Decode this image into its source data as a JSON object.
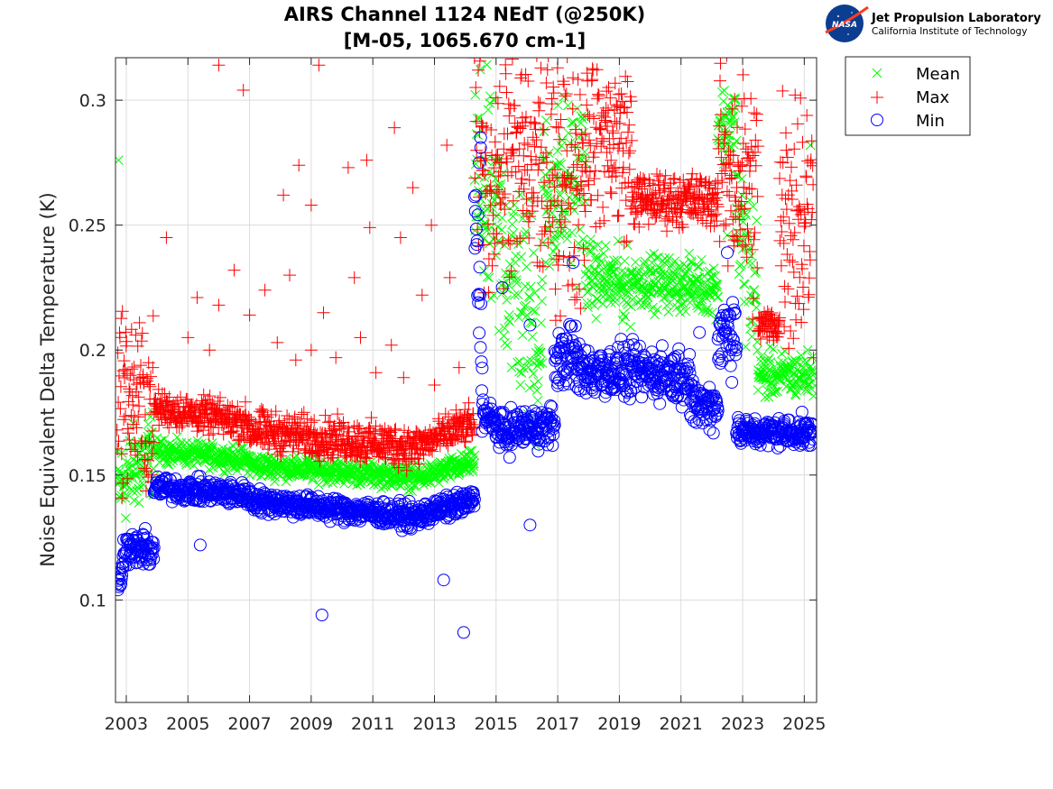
{
  "header": {
    "logo_text": "NASA",
    "lab_name": "Jet Propulsion Laboratory",
    "lab_sub": "California Institute of Technology"
  },
  "chart_data": {
    "type": "scatter",
    "title": "AIRS Channel 1124 NEdT (@250K)",
    "subtitle": "[M-05, 1065.670 cm-1]",
    "xlabel": "",
    "ylabel": "Noise Equivalent Delta Temperature (K)",
    "xlim": [
      2002.65,
      2025.4
    ],
    "ylim": [
      0.059,
      0.317
    ],
    "grid": true,
    "legend_position": "outside-top-right",
    "x_ticks": [
      2003,
      2005,
      2007,
      2009,
      2011,
      2013,
      2015,
      2017,
      2019,
      2021,
      2023,
      2025
    ],
    "x_tick_labels": [
      "2003",
      "2005",
      "2007",
      "2009",
      "2011",
      "2013",
      "2015",
      "2017",
      "2019",
      "2021",
      "2023",
      "2025"
    ],
    "y_ticks": [
      0.1,
      0.15,
      0.2,
      0.25,
      0.3
    ],
    "y_tick_labels": [
      "0.1",
      "0.15",
      "0.2",
      "0.25",
      "0.3"
    ],
    "series": [
      {
        "name": "Mean",
        "marker": "x",
        "color": "#00ff00",
        "segments": [
          {
            "x_start": 2002.7,
            "x_end": 2003.9,
            "center_start": 0.145,
            "center_end": 0.16,
            "spread": 0.015
          },
          {
            "x_start": 2003.9,
            "x_end": 2007.0,
            "center_start": 0.16,
            "center_end": 0.156,
            "spread": 0.004
          },
          {
            "x_start": 2007.0,
            "x_end": 2012.5,
            "center_start": 0.154,
            "center_end": 0.149,
            "spread": 0.004
          },
          {
            "x_start": 2012.5,
            "x_end": 2014.3,
            "center_start": 0.149,
            "center_end": 0.155,
            "spread": 0.004
          },
          {
            "x_start": 2014.3,
            "x_end": 2016.5,
            "center_start": 0.27,
            "center_end": 0.2,
            "spread": 0.04
          },
          {
            "x_start": 2016.5,
            "x_end": 2017.9,
            "center_start": 0.26,
            "center_end": 0.27,
            "spread": 0.03
          },
          {
            "x_start": 2017.9,
            "x_end": 2019.4,
            "center_start": 0.23,
            "center_end": 0.225,
            "spread": 0.012
          },
          {
            "x_start": 2019.4,
            "x_end": 2022.2,
            "center_start": 0.228,
            "center_end": 0.225,
            "spread": 0.009
          },
          {
            "x_start": 2022.2,
            "x_end": 2022.8,
            "center_start": 0.29,
            "center_end": 0.29,
            "spread": 0.014
          },
          {
            "x_start": 2022.8,
            "x_end": 2023.5,
            "center_start": 0.25,
            "center_end": 0.22,
            "spread": 0.03
          },
          {
            "x_start": 2023.5,
            "x_end": 2025.3,
            "center_start": 0.19,
            "center_end": 0.19,
            "spread": 0.008
          }
        ],
        "outliers": [
          [
            2002.75,
            0.276
          ],
          [
            2022.5,
            0.246
          ],
          [
            2025.2,
            0.282
          ]
        ]
      },
      {
        "name": "Max",
        "marker": "+",
        "color": "#ff0000",
        "segments": [
          {
            "x_start": 2002.7,
            "x_end": 2003.9,
            "center_start": 0.185,
            "center_end": 0.175,
            "spread": 0.03
          },
          {
            "x_start": 2003.9,
            "x_end": 2007.0,
            "center_start": 0.177,
            "center_end": 0.171,
            "spread": 0.006
          },
          {
            "x_start": 2007.0,
            "x_end": 2012.5,
            "center_start": 0.168,
            "center_end": 0.161,
            "spread": 0.007
          },
          {
            "x_start": 2012.5,
            "x_end": 2014.3,
            "center_start": 0.162,
            "center_end": 0.171,
            "spread": 0.006
          },
          {
            "x_start": 2014.3,
            "x_end": 2017.9,
            "center_start": 0.28,
            "center_end": 0.27,
            "spread": 0.045
          },
          {
            "x_start": 2017.9,
            "x_end": 2019.4,
            "center_start": 0.29,
            "center_end": 0.28,
            "spread": 0.03
          },
          {
            "x_start": 2019.4,
            "x_end": 2022.2,
            "center_start": 0.26,
            "center_end": 0.26,
            "spread": 0.009
          },
          {
            "x_start": 2022.2,
            "x_end": 2023.5,
            "center_start": 0.28,
            "center_end": 0.26,
            "spread": 0.04
          },
          {
            "x_start": 2023.5,
            "x_end": 2024.2,
            "center_start": 0.21,
            "center_end": 0.21,
            "spread": 0.006
          },
          {
            "x_start": 2024.2,
            "x_end": 2025.3,
            "center_start": 0.26,
            "center_end": 0.25,
            "spread": 0.05
          }
        ],
        "outliers": [
          [
            2006.0,
            0.314
          ],
          [
            2006.8,
            0.304
          ],
          [
            2009.25,
            0.314
          ],
          [
            2008.6,
            0.274
          ],
          [
            2008.1,
            0.262
          ],
          [
            2009.0,
            0.258
          ],
          [
            2010.2,
            0.273
          ],
          [
            2010.8,
            0.276
          ],
          [
            2011.7,
            0.289
          ],
          [
            2012.3,
            0.265
          ],
          [
            2012.9,
            0.25
          ],
          [
            2011.9,
            0.245
          ],
          [
            2010.9,
            0.249
          ],
          [
            2013.4,
            0.282
          ],
          [
            2004.3,
            0.245
          ],
          [
            2005.3,
            0.221
          ],
          [
            2006.5,
            0.232
          ],
          [
            2007.5,
            0.224
          ],
          [
            2008.3,
            0.23
          ],
          [
            2009.4,
            0.215
          ],
          [
            2010.4,
            0.229
          ],
          [
            2011.6,
            0.202
          ],
          [
            2012.6,
            0.222
          ],
          [
            2013.5,
            0.229
          ],
          [
            2007.0,
            0.214
          ],
          [
            2009.8,
            0.197
          ],
          [
            2005.7,
            0.2
          ],
          [
            2008.5,
            0.196
          ],
          [
            2011.1,
            0.191
          ],
          [
            2012.0,
            0.189
          ],
          [
            2013.0,
            0.186
          ],
          [
            2013.8,
            0.193
          ],
          [
            2013.7,
            0.176
          ],
          [
            2005.0,
            0.205
          ],
          [
            2006.0,
            0.218
          ],
          [
            2007.9,
            0.203
          ],
          [
            2009.0,
            0.2
          ],
          [
            2010.6,
            0.205
          ]
        ]
      },
      {
        "name": "Min",
        "marker": "o",
        "color": "#0000ff",
        "segments": [
          {
            "x_start": 2002.7,
            "x_end": 2002.9,
            "center_start": 0.108,
            "center_end": 0.112,
            "spread": 0.004
          },
          {
            "x_start": 2002.9,
            "x_end": 2003.9,
            "center_start": 0.12,
            "center_end": 0.12,
            "spread": 0.006
          },
          {
            "x_start": 2003.9,
            "x_end": 2007.0,
            "center_start": 0.145,
            "center_end": 0.142,
            "spread": 0.004
          },
          {
            "x_start": 2007.0,
            "x_end": 2012.5,
            "center_start": 0.14,
            "center_end": 0.133,
            "spread": 0.004
          },
          {
            "x_start": 2012.5,
            "x_end": 2014.3,
            "center_start": 0.134,
            "center_end": 0.14,
            "spread": 0.004
          },
          {
            "x_start": 2014.3,
            "x_end": 2014.55,
            "center_start": 0.26,
            "center_end": 0.2,
            "spread": 0.02
          },
          {
            "x_start": 2014.55,
            "x_end": 2015.4,
            "center_start": 0.175,
            "center_end": 0.165,
            "spread": 0.006
          },
          {
            "x_start": 2015.4,
            "x_end": 2016.9,
            "center_start": 0.168,
            "center_end": 0.17,
            "spread": 0.007
          },
          {
            "x_start": 2016.9,
            "x_end": 2017.6,
            "center_start": 0.195,
            "center_end": 0.2,
            "spread": 0.01
          },
          {
            "x_start": 2017.6,
            "x_end": 2021.3,
            "center_start": 0.192,
            "center_end": 0.19,
            "spread": 0.009
          },
          {
            "x_start": 2021.3,
            "x_end": 2022.2,
            "center_start": 0.178,
            "center_end": 0.178,
            "spread": 0.008
          },
          {
            "x_start": 2022.2,
            "x_end": 2022.8,
            "center_start": 0.205,
            "center_end": 0.21,
            "spread": 0.015
          },
          {
            "x_start": 2022.8,
            "x_end": 2025.3,
            "center_start": 0.167,
            "center_end": 0.167,
            "spread": 0.005
          }
        ],
        "outliers": [
          [
            2005.4,
            0.122
          ],
          [
            2009.35,
            0.094
          ],
          [
            2013.3,
            0.108
          ],
          [
            2013.95,
            0.087
          ],
          [
            2016.1,
            0.13
          ],
          [
            2014.5,
            0.285
          ],
          [
            2014.5,
            0.281
          ],
          [
            2014.45,
            0.275
          ],
          [
            2015.2,
            0.225
          ],
          [
            2016.1,
            0.21
          ],
          [
            2017.5,
            0.235
          ],
          [
            2021.6,
            0.207
          ],
          [
            2022.5,
            0.239
          ]
        ]
      }
    ]
  }
}
